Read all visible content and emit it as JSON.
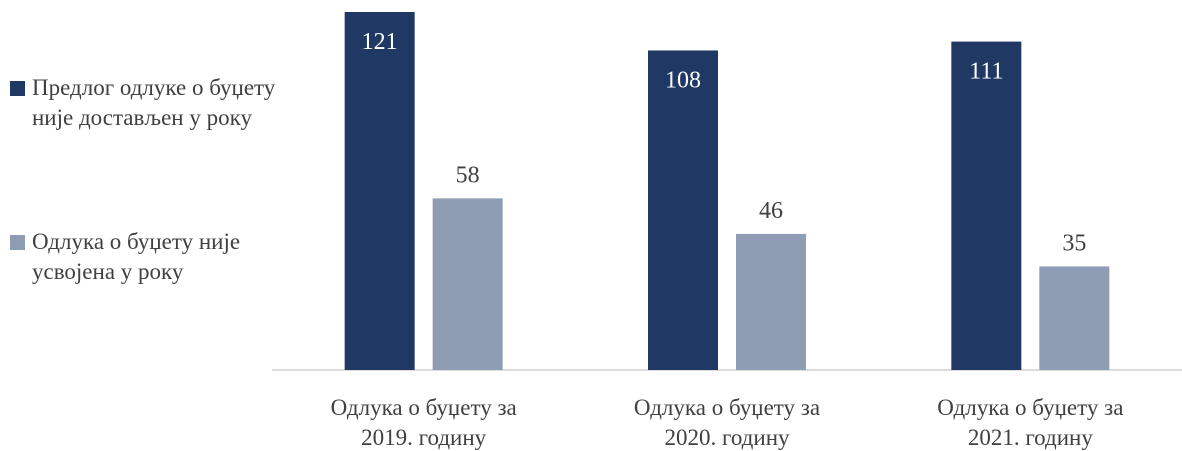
{
  "chart_data": {
    "type": "bar",
    "categories": [
      "Одлука о буџету за\n2019. годину",
      "Одлука о буџету за\n2020. годину",
      "Одлука о буџету за\n2021. годину"
    ],
    "series": [
      {
        "name": "Предлог одлуке о буџету није достављен у року",
        "color": "#1f3864",
        "values": [
          121,
          108,
          111
        ]
      },
      {
        "name": "Одлука о буџету није усвојена у року",
        "color": "#8e9cb4",
        "values": [
          58,
          46,
          35
        ]
      }
    ],
    "legend": "left"
  }
}
